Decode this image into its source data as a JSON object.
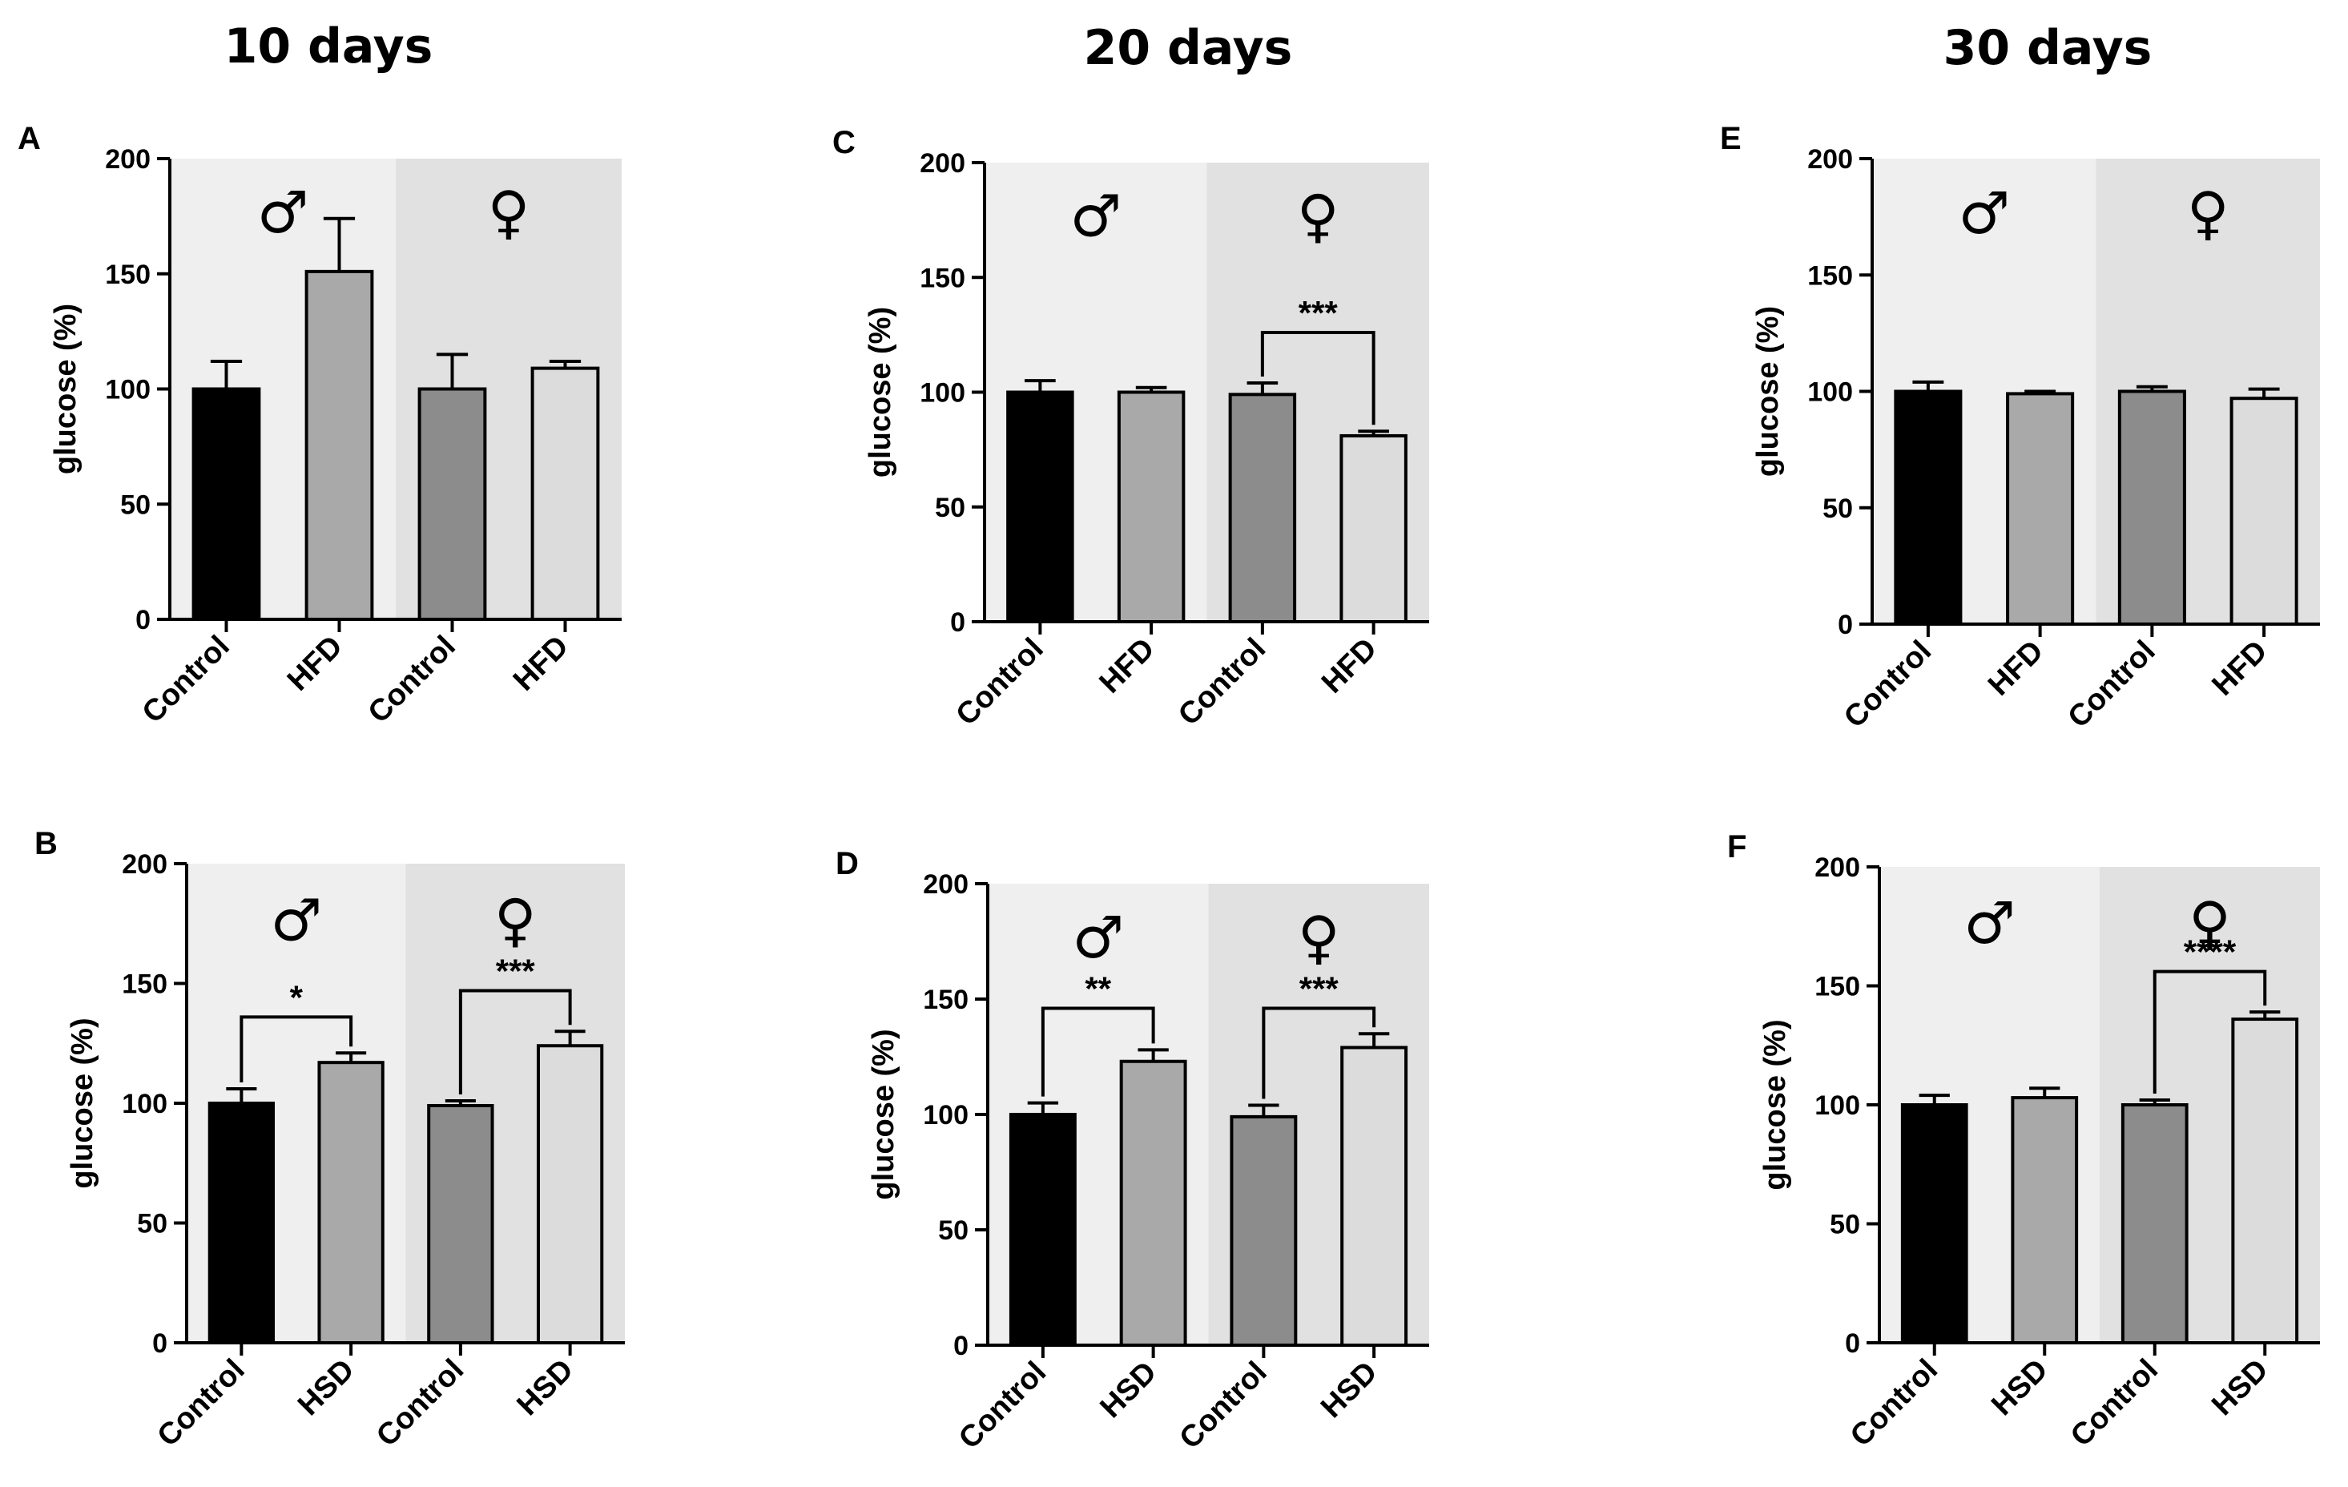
{
  "column_titles": [
    "10 days",
    "20 days",
    "30 days"
  ],
  "colors": {
    "male_bg": "#efefef",
    "female_bg": "#e1e1e1",
    "bar_control_male": "#000000",
    "bar_diet_male": "#a9a9a9",
    "bar_control_female": "#8c8c8c",
    "bar_diet_female": "#dcdcdc"
  },
  "chart_data": [
    {
      "panel": "A",
      "type": "bar",
      "column_title": "10 days",
      "ylabel": "glucose (%)",
      "ylim": [
        0,
        200
      ],
      "yticks": [
        0,
        50,
        100,
        150,
        200
      ],
      "categories": [
        "Control",
        "HFD",
        "Control",
        "HFD"
      ],
      "groups": [
        "♂",
        "♀"
      ],
      "values": [
        100,
        151,
        100,
        109
      ],
      "errors": [
        12,
        23,
        15,
        3
      ],
      "significance": []
    },
    {
      "panel": "B",
      "type": "bar",
      "column_title": "10 days",
      "ylabel": "glucose (%)",
      "ylim": [
        0,
        200
      ],
      "yticks": [
        0,
        50,
        100,
        150,
        200
      ],
      "categories": [
        "Control",
        "HSD",
        "Control",
        "HSD"
      ],
      "groups": [
        "♂",
        "♀"
      ],
      "values": [
        100,
        117,
        99,
        124
      ],
      "errors": [
        6,
        4,
        2,
        6
      ],
      "significance": [
        {
          "from": 0,
          "to": 1,
          "label": "*",
          "level": 136
        },
        {
          "from": 2,
          "to": 3,
          "label": "***",
          "level": 147
        }
      ]
    },
    {
      "panel": "C",
      "type": "bar",
      "column_title": "20 days",
      "ylabel": "glucose (%)",
      "ylim": [
        0,
        200
      ],
      "yticks": [
        0,
        50,
        100,
        150,
        200
      ],
      "categories": [
        "Control",
        "HFD",
        "Control",
        "HFD"
      ],
      "groups": [
        "♂",
        "♀"
      ],
      "values": [
        100,
        100,
        99,
        81
      ],
      "errors": [
        5,
        2,
        5,
        2
      ],
      "significance": [
        {
          "from": 2,
          "to": 3,
          "label": "***",
          "level": 126
        }
      ]
    },
    {
      "panel": "D",
      "type": "bar",
      "column_title": "20 days",
      "ylabel": "glucose (%)",
      "ylim": [
        0,
        200
      ],
      "yticks": [
        0,
        50,
        100,
        150,
        200
      ],
      "categories": [
        "Control",
        "HSD",
        "Control",
        "HSD"
      ],
      "groups": [
        "♂",
        "♀"
      ],
      "values": [
        100,
        123,
        99,
        129
      ],
      "errors": [
        5,
        5,
        5,
        6
      ],
      "significance": [
        {
          "from": 0,
          "to": 1,
          "label": "**",
          "level": 146
        },
        {
          "from": 2,
          "to": 3,
          "label": "***",
          "level": 146
        }
      ]
    },
    {
      "panel": "E",
      "type": "bar",
      "column_title": "30 days",
      "ylabel": "glucose (%)",
      "ylim": [
        0,
        200
      ],
      "yticks": [
        0,
        50,
        100,
        150,
        200
      ],
      "categories": [
        "Control",
        "HFD",
        "Control",
        "HFD"
      ],
      "groups": [
        "♂",
        "♀"
      ],
      "values": [
        100,
        99,
        100,
        97
      ],
      "errors": [
        4,
        1,
        2,
        4
      ],
      "significance": []
    },
    {
      "panel": "F",
      "type": "bar",
      "column_title": "30 days",
      "ylabel": "glucose (%)",
      "ylim": [
        0,
        200
      ],
      "yticks": [
        0,
        50,
        100,
        150,
        200
      ],
      "categories": [
        "Control",
        "HSD",
        "Control",
        "HSD"
      ],
      "groups": [
        "♂",
        "♀"
      ],
      "values": [
        100,
        103,
        100,
        136
      ],
      "errors": [
        4,
        4,
        2,
        3
      ],
      "significance": [
        {
          "from": 2,
          "to": 3,
          "label": "****",
          "level": 156
        }
      ]
    }
  ]
}
